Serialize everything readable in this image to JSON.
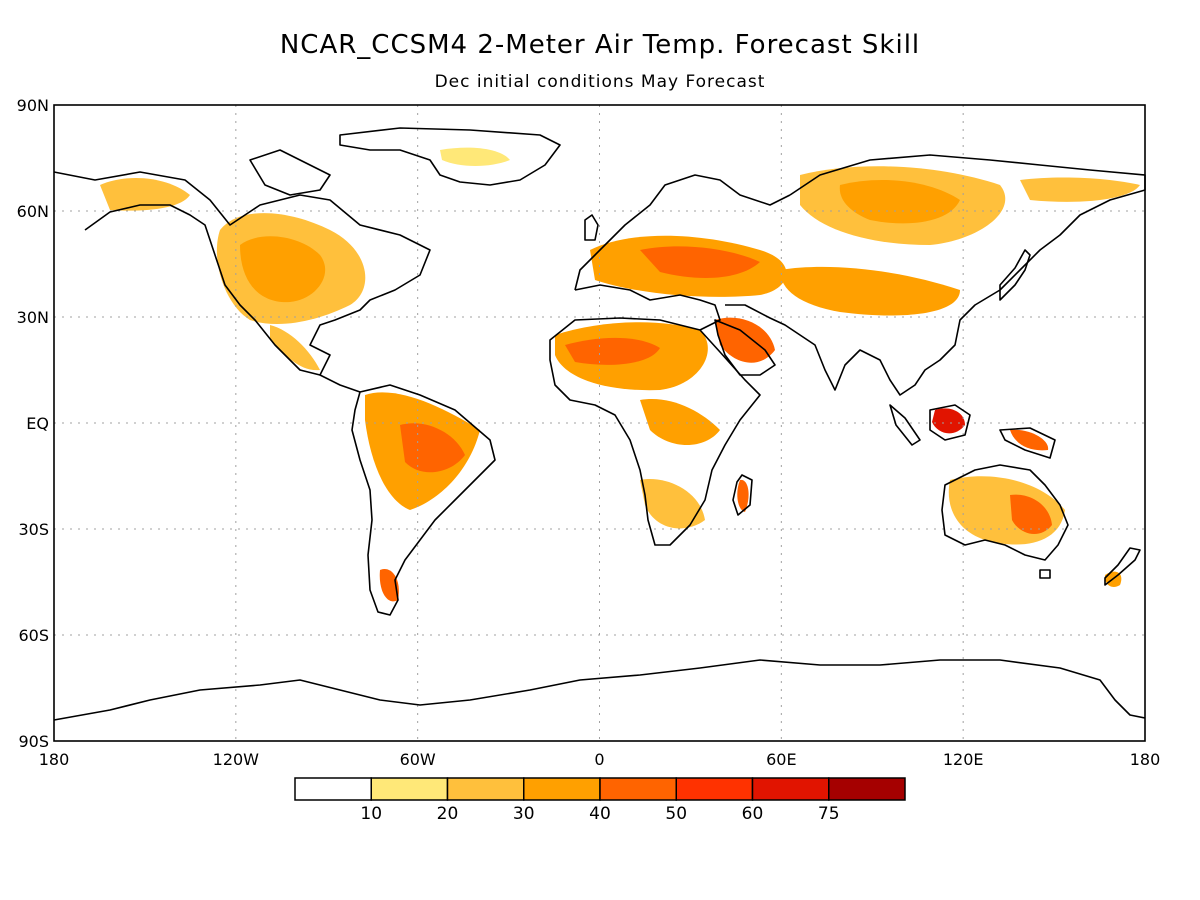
{
  "title": "NCAR_CCSM4 2-Meter Air Temp. Forecast Skill",
  "subtitle": "Dec initial conditions  May Forecast",
  "lat_ticks": [
    "90N",
    "60N",
    "30N",
    "EQ",
    "30S",
    "60S",
    "90S"
  ],
  "lon_ticks": [
    "180",
    "120W",
    "60W",
    "0",
    "60E",
    "120E",
    "180"
  ],
  "colorbar": {
    "colors": [
      "#ffffff",
      "#ffe878",
      "#ffc03c",
      "#ffa000",
      "#ff6400",
      "#ff3200",
      "#e11400",
      "#a50000"
    ],
    "labels": [
      "10",
      "20",
      "30",
      "40",
      "50",
      "60",
      "75"
    ]
  }
}
